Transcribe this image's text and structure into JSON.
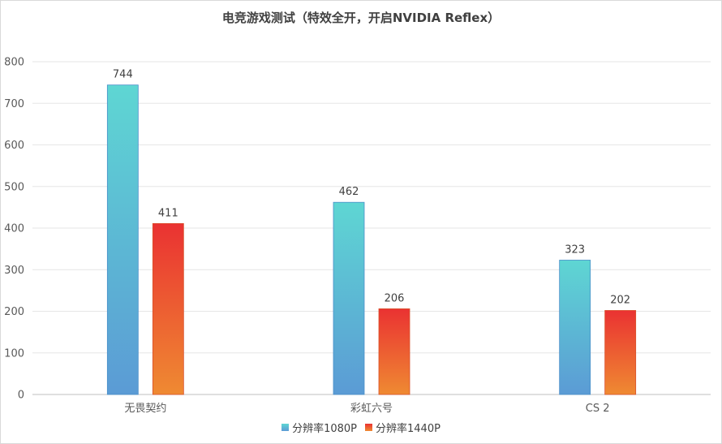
{
  "chart_data": {
    "type": "bar",
    "title": "电竞游戏测试（特效全开，开启NVIDIA Reflex）",
    "categories": [
      "无畏契约",
      "彩虹六号",
      "CS 2"
    ],
    "series": [
      {
        "name": "分辨率1080P",
        "values": [
          744,
          462,
          323
        ],
        "color_top": "#5ed6d3",
        "color_bottom": "#5b9bd5"
      },
      {
        "name": "分辨率1440P",
        "values": [
          411,
          206,
          202
        ],
        "color_top": "#ea3232",
        "color_bottom": "#ef8a32"
      }
    ],
    "yticks": [
      "0",
      "100",
      "200",
      "300",
      "400",
      "500",
      "600",
      "700",
      "800"
    ],
    "ylim": [
      0,
      800
    ],
    "grid": true,
    "legend_position": "bottom"
  }
}
